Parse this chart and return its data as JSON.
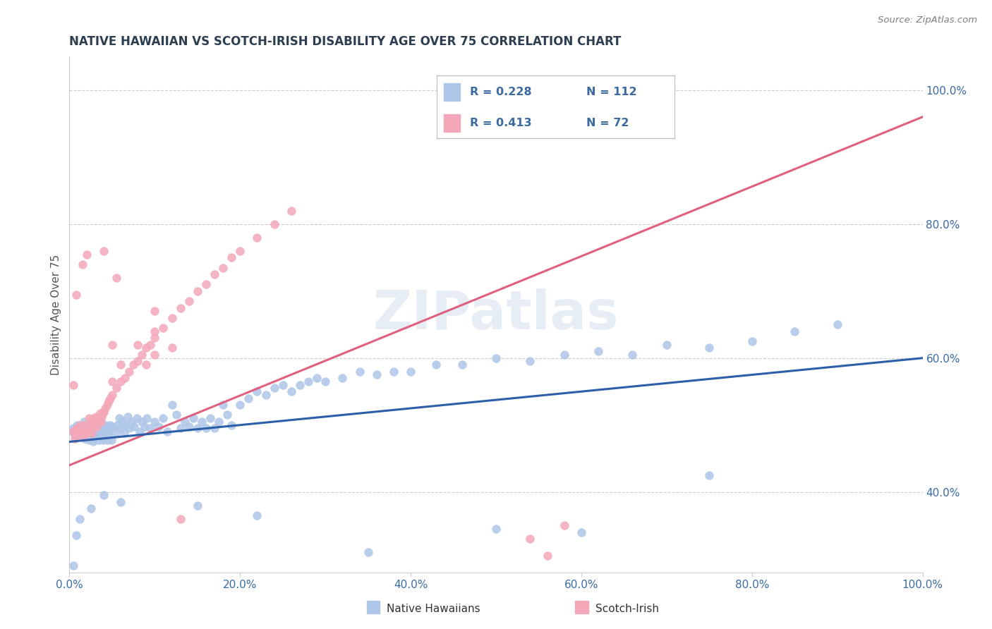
{
  "title": "NATIVE HAWAIIAN VS SCOTCH-IRISH DISABILITY AGE OVER 75 CORRELATION CHART",
  "source": "Source: ZipAtlas.com",
  "ylabel": "Disability Age Over 75",
  "x_tick_labels": [
    "0.0%",
    "20.0%",
    "40.0%",
    "60.0%",
    "80.0%",
    "100.0%"
  ],
  "x_ticks": [
    0.0,
    0.2,
    0.4,
    0.6,
    0.8,
    1.0
  ],
  "y_tick_labels_right": [
    "40.0%",
    "60.0%",
    "80.0%",
    "100.0%"
  ],
  "y_ticks_right": [
    0.4,
    0.6,
    0.8,
    1.0
  ],
  "xlim": [
    0.0,
    1.0
  ],
  "ylim": [
    0.28,
    1.05
  ],
  "native_hawaiian_R": 0.228,
  "native_hawaiian_N": 112,
  "scotch_irish_R": 0.413,
  "scotch_irish_N": 72,
  "native_hawaiian_color": "#aec6e8",
  "scotch_irish_color": "#f4a7b9",
  "native_hawaiian_line_color": "#2c5fa8",
  "scotch_irish_line_color": "#e06080",
  "legend_text_color": "#3b6aa0",
  "title_color": "#2c3e50",
  "background_color": "#ffffff",
  "grid_color": "#cccccc",
  "watermark": "ZIPatlas",
  "nh_intercept": 0.475,
  "nh_slope": 0.125,
  "si_intercept": 0.44,
  "si_slope": 0.52,
  "native_hawaiians_x": [
    0.004,
    0.005,
    0.006,
    0.007,
    0.008,
    0.009,
    0.01,
    0.011,
    0.012,
    0.013,
    0.014,
    0.015,
    0.016,
    0.017,
    0.018,
    0.019,
    0.02,
    0.021,
    0.022,
    0.023,
    0.024,
    0.025,
    0.026,
    0.027,
    0.028,
    0.029,
    0.03,
    0.031,
    0.032,
    0.033,
    0.034,
    0.035,
    0.036,
    0.037,
    0.038,
    0.039,
    0.04,
    0.041,
    0.042,
    0.043,
    0.044,
    0.045,
    0.046,
    0.047,
    0.048,
    0.049,
    0.05,
    0.052,
    0.054,
    0.056,
    0.058,
    0.06,
    0.062,
    0.064,
    0.066,
    0.068,
    0.07,
    0.073,
    0.076,
    0.079,
    0.082,
    0.085,
    0.088,
    0.091,
    0.095,
    0.1,
    0.105,
    0.11,
    0.115,
    0.12,
    0.125,
    0.13,
    0.135,
    0.14,
    0.145,
    0.15,
    0.155,
    0.16,
    0.165,
    0.17,
    0.175,
    0.18,
    0.185,
    0.19,
    0.2,
    0.21,
    0.22,
    0.23,
    0.24,
    0.25,
    0.26,
    0.27,
    0.28,
    0.29,
    0.3,
    0.32,
    0.34,
    0.36,
    0.38,
    0.4,
    0.43,
    0.46,
    0.5,
    0.54,
    0.58,
    0.62,
    0.66,
    0.7,
    0.75,
    0.8,
    0.85,
    0.9
  ],
  "native_hawaiians_y": [
    0.49,
    0.495,
    0.485,
    0.488,
    0.492,
    0.5,
    0.487,
    0.495,
    0.488,
    0.5,
    0.492,
    0.485,
    0.498,
    0.505,
    0.48,
    0.495,
    0.488,
    0.492,
    0.5,
    0.478,
    0.495,
    0.488,
    0.492,
    0.5,
    0.475,
    0.48,
    0.495,
    0.488,
    0.492,
    0.5,
    0.478,
    0.495,
    0.488,
    0.492,
    0.5,
    0.478,
    0.495,
    0.488,
    0.492,
    0.5,
    0.478,
    0.498,
    0.488,
    0.492,
    0.5,
    0.478,
    0.498,
    0.495,
    0.488,
    0.5,
    0.51,
    0.495,
    0.505,
    0.488,
    0.5,
    0.512,
    0.495,
    0.505,
    0.498,
    0.51,
    0.49,
    0.505,
    0.498,
    0.51,
    0.495,
    0.505,
    0.498,
    0.51,
    0.49,
    0.53,
    0.515,
    0.495,
    0.505,
    0.498,
    0.51,
    0.495,
    0.505,
    0.495,
    0.51,
    0.495,
    0.505,
    0.53,
    0.515,
    0.5,
    0.53,
    0.54,
    0.55,
    0.545,
    0.555,
    0.56,
    0.55,
    0.56,
    0.565,
    0.57,
    0.565,
    0.57,
    0.58,
    0.575,
    0.58,
    0.58,
    0.59,
    0.59,
    0.6,
    0.595,
    0.605,
    0.61,
    0.605,
    0.62,
    0.615,
    0.625,
    0.64,
    0.65
  ],
  "scotch_irish_x": [
    0.004,
    0.006,
    0.007,
    0.008,
    0.009,
    0.01,
    0.011,
    0.012,
    0.013,
    0.014,
    0.015,
    0.016,
    0.017,
    0.018,
    0.019,
    0.02,
    0.021,
    0.022,
    0.023,
    0.024,
    0.025,
    0.026,
    0.027,
    0.028,
    0.029,
    0.03,
    0.031,
    0.032,
    0.033,
    0.034,
    0.035,
    0.036,
    0.037,
    0.038,
    0.039,
    0.04,
    0.042,
    0.044,
    0.046,
    0.048,
    0.05,
    0.055,
    0.06,
    0.065,
    0.07,
    0.075,
    0.08,
    0.085,
    0.09,
    0.095,
    0.1,
    0.11,
    0.12,
    0.13,
    0.14,
    0.15,
    0.16,
    0.17,
    0.18,
    0.19,
    0.2,
    0.22,
    0.24,
    0.26,
    0.05,
    0.06,
    0.08,
    0.1,
    0.05,
    0.09,
    0.1,
    0.12
  ],
  "scotch_irish_y": [
    0.49,
    0.48,
    0.492,
    0.485,
    0.495,
    0.49,
    0.488,
    0.5,
    0.485,
    0.495,
    0.488,
    0.492,
    0.5,
    0.485,
    0.495,
    0.488,
    0.492,
    0.5,
    0.51,
    0.495,
    0.505,
    0.488,
    0.498,
    0.51,
    0.498,
    0.505,
    0.512,
    0.498,
    0.51,
    0.505,
    0.512,
    0.518,
    0.505,
    0.512,
    0.518,
    0.52,
    0.525,
    0.53,
    0.535,
    0.54,
    0.545,
    0.555,
    0.565,
    0.57,
    0.58,
    0.59,
    0.595,
    0.605,
    0.615,
    0.62,
    0.63,
    0.645,
    0.66,
    0.675,
    0.685,
    0.7,
    0.71,
    0.725,
    0.735,
    0.75,
    0.76,
    0.78,
    0.8,
    0.82,
    0.62,
    0.59,
    0.62,
    0.64,
    0.565,
    0.59,
    0.605,
    0.615
  ],
  "extra_nh_x": [
    0.005,
    0.008,
    0.012,
    0.025,
    0.04,
    0.06,
    0.15,
    0.22,
    0.35,
    0.5,
    0.6,
    0.75
  ],
  "extra_nh_y": [
    0.29,
    0.335,
    0.36,
    0.375,
    0.395,
    0.385,
    0.38,
    0.365,
    0.31,
    0.345,
    0.34,
    0.425
  ],
  "extra_si_x": [
    0.005,
    0.008,
    0.015,
    0.02,
    0.04,
    0.055,
    0.1,
    0.13,
    0.54,
    0.56,
    0.58
  ],
  "extra_si_y": [
    0.56,
    0.695,
    0.74,
    0.755,
    0.76,
    0.72,
    0.67,
    0.36,
    0.33,
    0.305,
    0.35
  ]
}
